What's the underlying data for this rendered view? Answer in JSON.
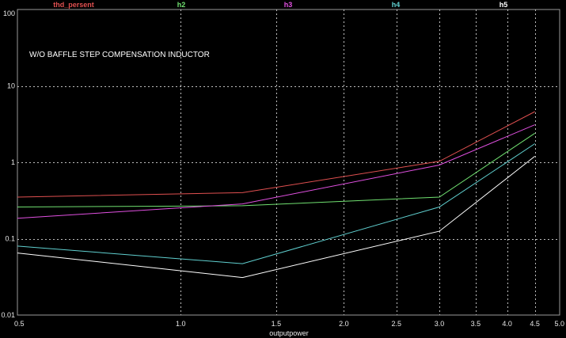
{
  "chart_data": {
    "type": "line",
    "title": "",
    "annotation": "W/O BAFFLE STEP COMPENSATION INDUCTOR",
    "xlabel": "outputpower",
    "ylabel": "",
    "x_scale": "log",
    "y_scale": "log",
    "xlim": [
      0.5,
      5.0
    ],
    "ylim": [
      0.01,
      100
    ],
    "grid": true,
    "legend": "top",
    "x_ticks": [
      {
        "value": 0.5,
        "label": "0.5"
      },
      {
        "value": 1.0,
        "label": "1.0"
      },
      {
        "value": 1.5,
        "label": "1.5"
      },
      {
        "value": 2.0,
        "label": "2.0"
      },
      {
        "value": 2.5,
        "label": "2.5"
      },
      {
        "value": 3.0,
        "label": "3.0"
      },
      {
        "value": 3.5,
        "label": "3.5"
      },
      {
        "value": 4.0,
        "label": "4.0"
      },
      {
        "value": 4.5,
        "label": "4.5"
      },
      {
        "value": 5.0,
        "label": "5.0"
      }
    ],
    "y_ticks": [
      {
        "value": 0.01,
        "label": "0.01"
      },
      {
        "value": 0.1,
        "label": "0.1"
      },
      {
        "value": 1,
        "label": "1"
      },
      {
        "value": 10,
        "label": "10"
      },
      {
        "value": 100,
        "label": "100"
      }
    ],
    "series": [
      {
        "name": "thd_persent",
        "color": "#e05050",
        "x": [
          0.5,
          1.3,
          3.0,
          4.5
        ],
        "y": [
          0.35,
          0.4,
          1.03,
          4.6
        ]
      },
      {
        "name": "h2",
        "color": "#70e070",
        "x": [
          0.5,
          1.3,
          3.0,
          4.5
        ],
        "y": [
          0.26,
          0.27,
          0.35,
          2.4
        ]
      },
      {
        "name": "h3",
        "color": "#e050e0",
        "x": [
          0.5,
          1.3,
          3.0,
          4.5
        ],
        "y": [
          0.185,
          0.285,
          0.92,
          3.1
        ]
      },
      {
        "name": "h4",
        "color": "#60d0d0",
        "x": [
          0.5,
          1.3,
          3.0,
          4.5
        ],
        "y": [
          0.08,
          0.047,
          0.26,
          1.75
        ]
      },
      {
        "name": "h5",
        "color": "#ffffff",
        "x": [
          0.5,
          1.3,
          3.0,
          4.5
        ],
        "y": [
          0.065,
          0.031,
          0.125,
          1.2
        ]
      }
    ]
  }
}
